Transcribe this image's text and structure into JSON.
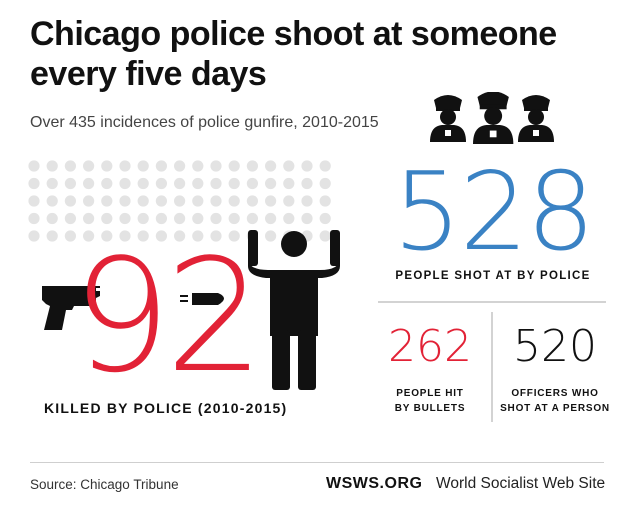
{
  "title": "Chicago police shoot at someone every five days",
  "subtitle": "Over 435 incidences of police gunfire, 2010-2015",
  "icons": {
    "gun": "gun-icon",
    "bullet": "bullet-icon",
    "person": "person-hands-up-icon",
    "police": "police-officer-icon"
  },
  "colors": {
    "red": "#e22236",
    "blue": "#3a82c4",
    "black": "#111111",
    "dot_grey": "#e3e3e3"
  },
  "chart_data": {
    "type": "table",
    "stats": [
      {
        "value": "92",
        "label": "KILLED BY POLICE (2010-2015)",
        "color": "#e22236"
      },
      {
        "value": "528",
        "label": "PEOPLE SHOT AT BY POLICE",
        "color": "#3a82c4"
      },
      {
        "value": "262",
        "label_lines": [
          "PEOPLE HIT",
          "BY BULLETS"
        ],
        "color": "#e22236"
      },
      {
        "value": "520",
        "label_lines": [
          "OFFICERS WHO",
          "SHOT AT A PERSON"
        ],
        "color": "#111111"
      }
    ]
  },
  "footer": {
    "source": "Source: Chicago Tribune",
    "brand": "WSWS.ORG",
    "site_name": "World Socialist Web Site"
  }
}
